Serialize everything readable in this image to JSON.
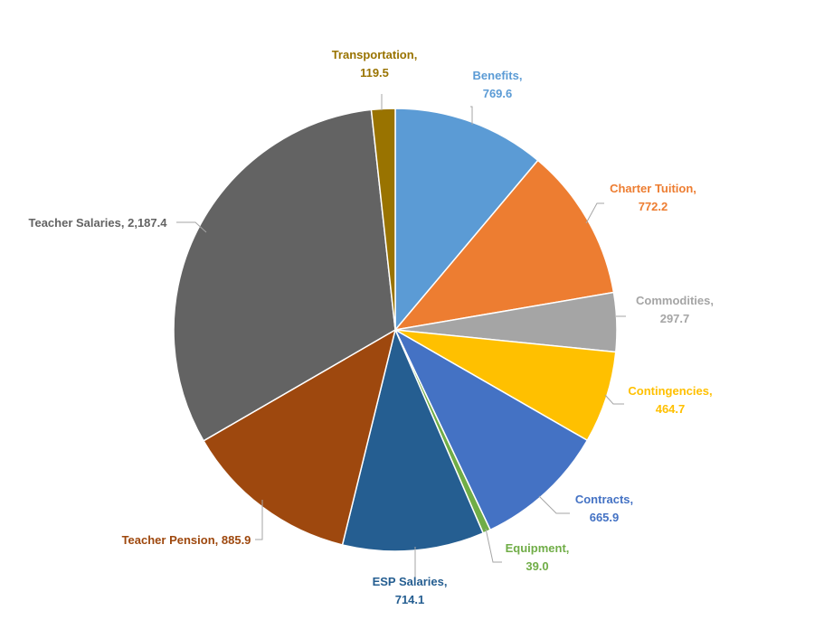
{
  "chart_data": {
    "type": "pie",
    "title": "",
    "slices": [
      {
        "label": "Benefits",
        "value": 769.6,
        "value_text": "769.6",
        "color": "#5B9BD5"
      },
      {
        "label": "Charter Tuition",
        "value": 772.2,
        "value_text": "772.2",
        "color": "#ED7D31"
      },
      {
        "label": "Commodities",
        "value": 297.7,
        "value_text": "297.7",
        "color": "#A5A5A5"
      },
      {
        "label": "Contingencies",
        "value": 464.7,
        "value_text": "464.7",
        "color": "#FFC000"
      },
      {
        "label": "Contracts",
        "value": 665.9,
        "value_text": "665.9",
        "color": "#4472C4"
      },
      {
        "label": "Equipment",
        "value": 39.0,
        "value_text": "39.0",
        "color": "#70AD47"
      },
      {
        "label": "ESP Salaries",
        "value": 714.1,
        "value_text": "714.1",
        "color": "#255E91"
      },
      {
        "label": "Teacher Pension",
        "value": 885.9,
        "value_text": "885.9",
        "color": "#9E480E"
      },
      {
        "label": "Teacher Salaries",
        "value": 2187.4,
        "value_text": "2,187.4",
        "color": "#636363"
      },
      {
        "label": "Transportation",
        "value": 119.5,
        "value_text": "119.5",
        "color": "#997300"
      }
    ]
  }
}
